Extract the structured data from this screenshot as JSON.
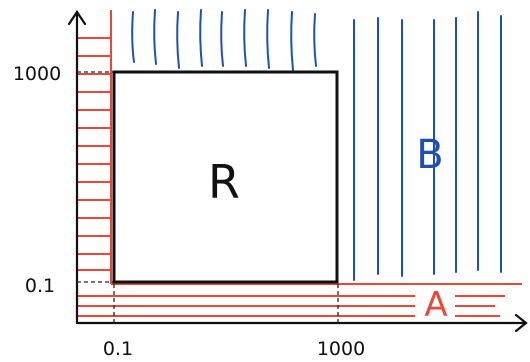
{
  "labels": {
    "region_r": "R",
    "region_a": "A",
    "region_b": "B"
  },
  "axes": {
    "x_ticks": [
      "0.1",
      "1000"
    ],
    "y_ticks": [
      "1000",
      "0.1"
    ]
  },
  "colors": {
    "ink": "#111111",
    "red": "#e8473a",
    "blue": "#1f4fb0",
    "guide": "#222222"
  }
}
